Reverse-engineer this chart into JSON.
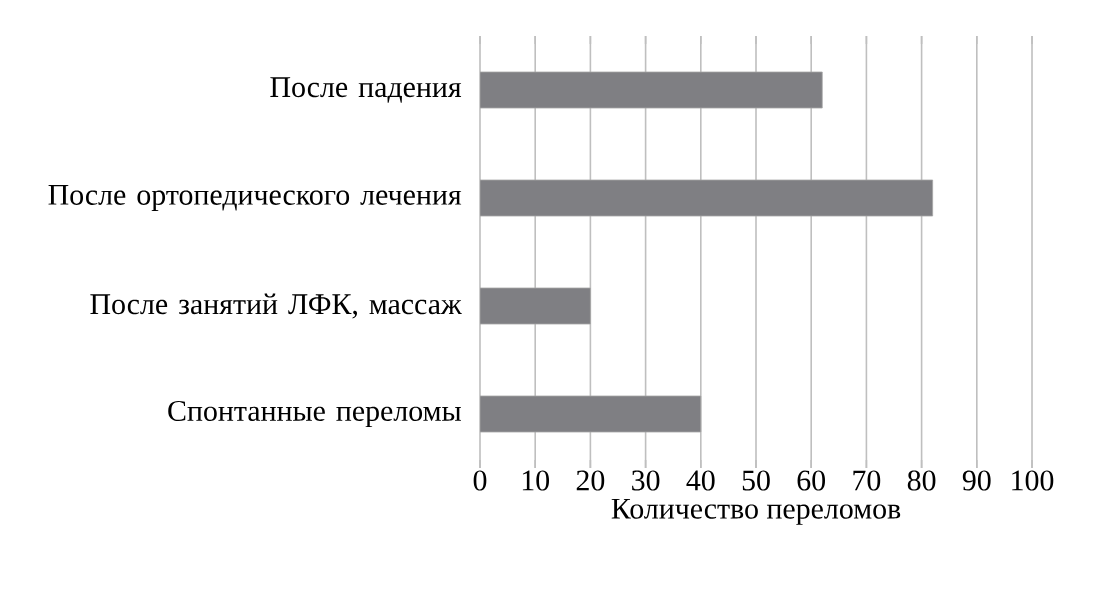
{
  "chart_data": {
    "type": "bar",
    "orientation": "horizontal",
    "categories": [
      "После падения",
      "После ортопедического лечения",
      "После занятий ЛФК, массаж",
      "Спонтанные переломы"
    ],
    "values": [
      62,
      82,
      20,
      40
    ],
    "color": "#7f7f83",
    "xlabel": "Количество переломов",
    "xlim": [
      0,
      100
    ],
    "xticks": [
      0,
      10,
      20,
      30,
      40,
      50,
      60,
      70,
      80,
      90,
      100
    ],
    "grid": "x"
  }
}
